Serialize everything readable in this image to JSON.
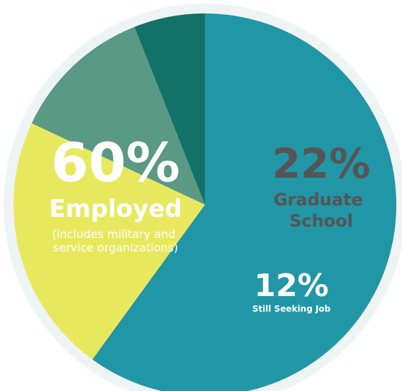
{
  "chart_data": {
    "type": "pie",
    "slices": [
      {
        "value": 60,
        "percent_label": "60%",
        "label": "Employed",
        "note": "(includes military and|service organizations)",
        "color": "#2196a6"
      },
      {
        "value": 22,
        "percent_label": "22%",
        "label": "Graduate|School",
        "color": "#e8e85f"
      },
      {
        "value": 12,
        "percent_label": "12%",
        "label": "Still Seeking Job",
        "color": "#5a9983"
      },
      {
        "value": 6,
        "color": "#137268"
      }
    ],
    "start_angle_deg": 0,
    "direction": "clockwise",
    "outer_ring_color": "#eef4f4",
    "text_colors": {
      "light": "#ffffff",
      "dark": "#555555"
    }
  }
}
